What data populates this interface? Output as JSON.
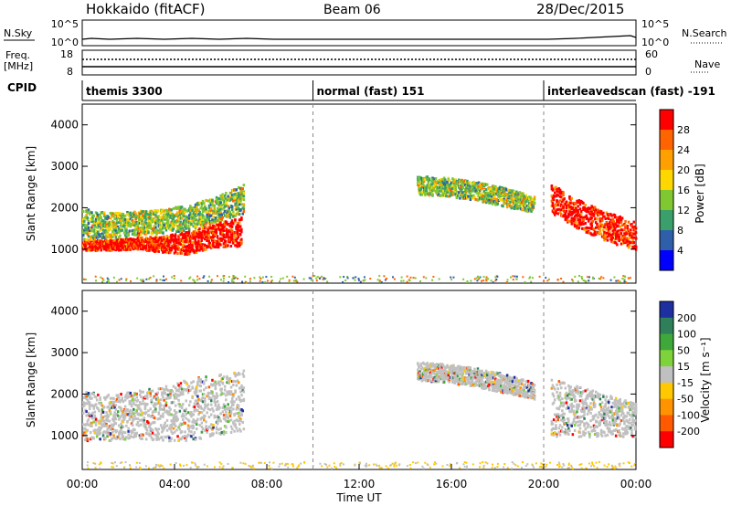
{
  "header": {
    "station": "Hokkaido (fitACF)",
    "beam": "Beam 06",
    "date": "28/Dec/2015"
  },
  "panels": {
    "nsky_label": "N.Sky",
    "nsearch_label": "N.Search",
    "nsky_ticks": [
      "10^5",
      "10^0"
    ],
    "nsearch_ticks": [
      "10^5",
      "10^0"
    ],
    "freq_label_line1": "Freq.",
    "freq_label_line2": "[MHz]",
    "freq_ticks": [
      "18",
      "8"
    ],
    "nave_label": "Nave",
    "nave_ticks": [
      "60",
      "0"
    ],
    "cpid_label": "CPID"
  },
  "cpid_segments": [
    {
      "label": "themis 3300",
      "start": 0.0,
      "end": 10.0
    },
    {
      "label": "normal (fast) 151",
      "start": 10.0,
      "end": 20.0
    },
    {
      "label": "interleavedscan (fast) -191",
      "start": 20.0,
      "end": 24.0
    }
  ],
  "colorbars": {
    "power": {
      "label": "Power [dB]",
      "ticks": [
        "28",
        "24",
        "20",
        "16",
        "12",
        "8",
        "4"
      ],
      "colors": [
        "#ff0000",
        "#ff6400",
        "#ffa000",
        "#ffd700",
        "#7fc832",
        "#3a9f6a",
        "#2e5fa8",
        "#0000ff"
      ]
    },
    "velocity": {
      "label": "Velocity [m s⁻¹]",
      "ticks": [
        "200",
        "100",
        "50",
        "15",
        "-15",
        "-50",
        "-100",
        "-200"
      ],
      "colors": [
        "#1e2fa0",
        "#2e7f5a",
        "#3ea83a",
        "#7ed23a",
        "#c0c0c0",
        "#ffc800",
        "#ff9400",
        "#ff5a00",
        "#ff0000"
      ]
    }
  },
  "chart_data": [
    {
      "type": "heatmap",
      "title": "Power",
      "xlabel": "Time UT",
      "ylabel": "Slant Range [km]",
      "xlim": [
        0,
        24
      ],
      "ylim": [
        180,
        4500
      ],
      "y_ticks": [
        1000,
        2000,
        3000,
        4000
      ],
      "x_ticks": [
        "00:00",
        "04:00",
        "08:00",
        "12:00",
        "16:00",
        "20:00",
        "00:00"
      ],
      "x_tick_hours": [
        0,
        4,
        8,
        12,
        16,
        20,
        24
      ],
      "regions": [
        {
          "name": "early-band",
          "t0": 0.0,
          "t1": 6.9,
          "r_low": [
            1000,
            1000,
            1020,
            950,
            900,
            1080,
            1100
          ],
          "r_high": [
            1250,
            1250,
            1300,
            1350,
            1450,
            1650,
            1800
          ],
          "value": 28
        },
        {
          "name": "early-upper",
          "t0": 0.0,
          "t1": 7.0,
          "r_low": [
            1250,
            1300,
            1350,
            1400,
            1500,
            1700,
            1900
          ],
          "r_high": [
            2000,
            1900,
            1950,
            2000,
            2100,
            2300,
            2600
          ],
          "value": 14
        },
        {
          "name": "mid-arc",
          "t0": 14.5,
          "t1": 19.6,
          "r_low": [
            2350,
            2300,
            2200,
            2050,
            1900
          ],
          "r_high": [
            2800,
            2750,
            2650,
            2500,
            2300
          ],
          "value": 20
        },
        {
          "name": "late-band",
          "t0": 20.3,
          "t1": 24.0,
          "r_low": [
            1900,
            1500,
            1200,
            1000
          ],
          "r_high": [
            2600,
            2200,
            1900,
            1700
          ],
          "value": 28
        }
      ]
    },
    {
      "type": "heatmap",
      "title": "Velocity",
      "xlabel": "Time UT",
      "ylabel": "Slant Range [km]",
      "xlim": [
        0,
        24
      ],
      "ylim": [
        180,
        4500
      ],
      "y_ticks": [
        1000,
        2000,
        3000,
        4000
      ],
      "x_ticks": [
        "00:00",
        "04:00",
        "08:00",
        "12:00",
        "16:00",
        "20:00",
        "00:00"
      ],
      "x_tick_hours": [
        0,
        4,
        8,
        12,
        16,
        20,
        24
      ],
      "regions": [
        {
          "name": "early-band",
          "t0": 0.0,
          "t1": 7.0,
          "r_low": [
            900,
            900,
            950,
            900,
            900,
            1050,
            1100
          ],
          "r_high": [
            2100,
            2000,
            2100,
            2200,
            2400,
            2500,
            2600
          ],
          "value": 0
        },
        {
          "name": "mid-arc",
          "t0": 14.5,
          "t1": 19.6,
          "r_low": [
            2350,
            2300,
            2200,
            2050,
            1900
          ],
          "r_high": [
            2800,
            2750,
            2650,
            2500,
            2300
          ],
          "value": 0
        },
        {
          "name": "late-band",
          "t0": 20.3,
          "t1": 24.0,
          "r_low": [
            1000,
            1000,
            1000,
            1000
          ],
          "r_high": [
            2400,
            2200,
            2000,
            1800
          ],
          "value": -10
        }
      ]
    }
  ]
}
